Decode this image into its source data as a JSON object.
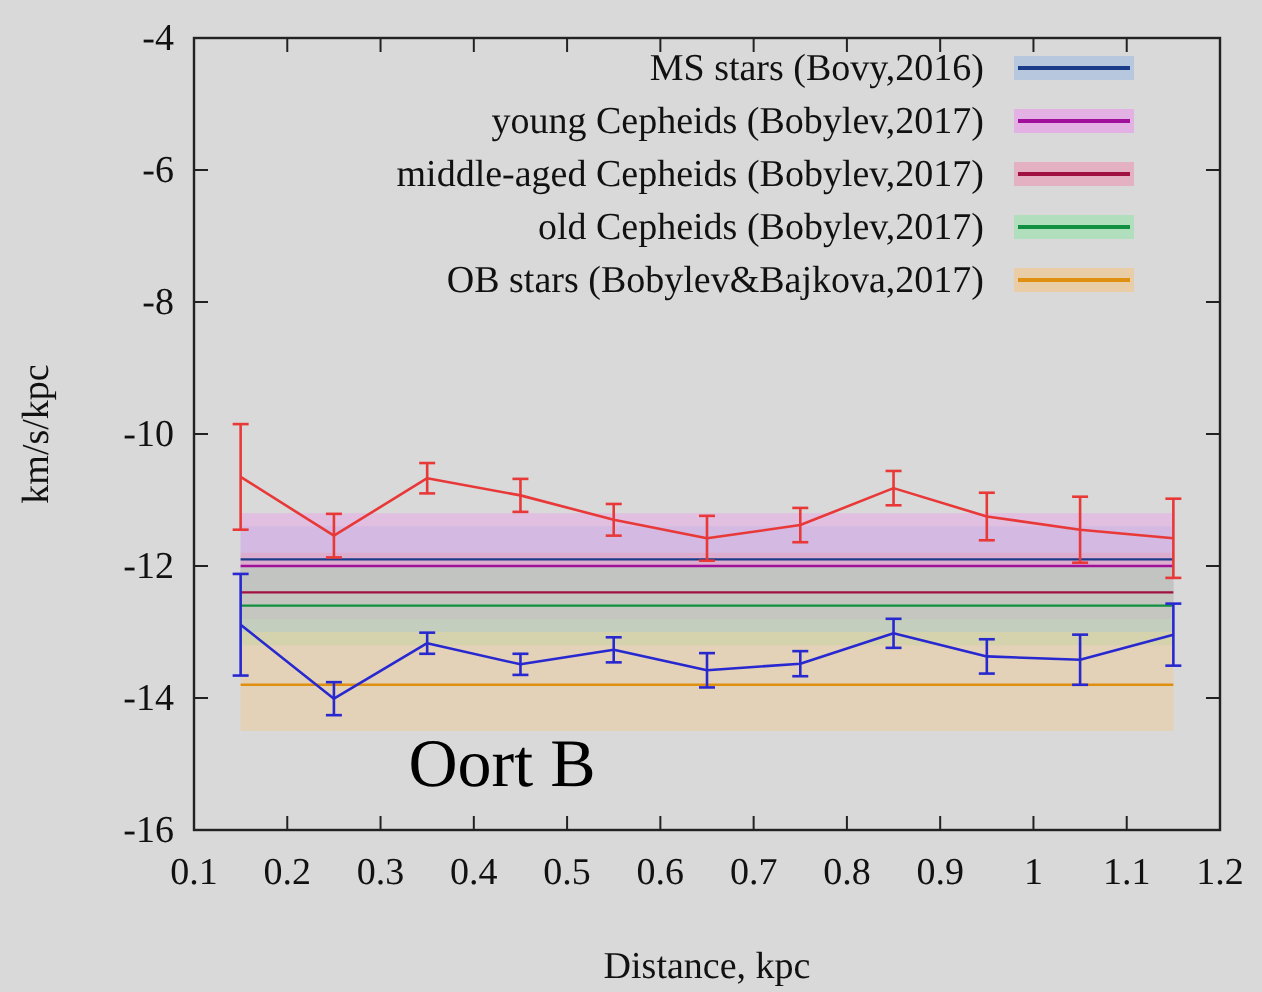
{
  "chart_data": {
    "type": "line",
    "xlabel": "Distance, kpc",
    "ylabel": "km/s/kpc",
    "x": [
      0.15,
      0.25,
      0.35,
      0.45,
      0.55,
      0.65,
      0.75,
      0.85,
      0.95,
      1.05,
      1.15
    ],
    "series": [
      {
        "color": "#e83838",
        "values": [
          -10.65,
          -11.54,
          -10.67,
          -10.93,
          -11.3,
          -11.58,
          -11.38,
          -10.82,
          -11.25,
          -11.45,
          -11.58
        ],
        "errors": [
          0.8,
          0.33,
          0.23,
          0.25,
          0.24,
          0.34,
          0.26,
          0.26,
          0.36,
          0.5,
          0.6
        ]
      },
      {
        "color": "#2828d0",
        "values": [
          -12.89,
          -14.01,
          -13.17,
          -13.49,
          -13.27,
          -13.58,
          -13.48,
          -13.02,
          -13.37,
          -13.42,
          -13.04
        ],
        "errors": [
          0.77,
          0.25,
          0.16,
          0.16,
          0.19,
          0.26,
          0.19,
          0.22,
          0.26,
          0.38,
          0.47
        ]
      }
    ],
    "ref_lines": [
      {
        "axis": "y",
        "value": -11.9,
        "label": "MS stars (Bovy,2016)",
        "color": "#1a3a8a"
      },
      {
        "axis": "y",
        "value": -12.0,
        "label": "young Cepheids (Bobylev,2017)",
        "color": "#a0109a"
      },
      {
        "axis": "y",
        "value": -12.4,
        "label": "middle-aged Cepheids (Bobylev,2017)",
        "color": "#a01040"
      },
      {
        "axis": "y",
        "value": -12.6,
        "label": "old Cepheids (Bobylev,2017)",
        "color": "#109040"
      },
      {
        "axis": "y",
        "value": -13.8,
        "label": "OB stars (Bobylev&Bajkova,2017)",
        "color": "#e09010"
      }
    ],
    "bands": [
      {
        "axis": "y",
        "from": -11.4,
        "to": -12.4,
        "color": "#a8c0e0"
      },
      {
        "axis": "y",
        "from": -11.2,
        "to": -12.8,
        "color": "#e8a0e8"
      },
      {
        "axis": "y",
        "from": -11.8,
        "to": -13.0,
        "color": "#e8a0b8"
      },
      {
        "axis": "y",
        "from": -12.0,
        "to": -13.2,
        "color": "#a0e0b0"
      },
      {
        "axis": "y",
        "from": -13.0,
        "to": -14.5,
        "color": "#f0c890"
      }
    ],
    "annotations": [
      "Oort B"
    ],
    "xlim": [
      0.1,
      1.2
    ],
    "xticks": [
      0.1,
      0.2,
      0.3,
      0.4,
      0.5,
      0.6,
      0.7,
      0.8,
      0.9,
      1,
      1.1,
      1.2
    ],
    "ylim": [
      -16,
      -4
    ],
    "yticks": [
      -16,
      -14,
      -12,
      -10,
      -8,
      -6,
      -4
    ],
    "legend": "top right",
    "grid": false,
    "marker": "none",
    "line_style": "solid"
  }
}
